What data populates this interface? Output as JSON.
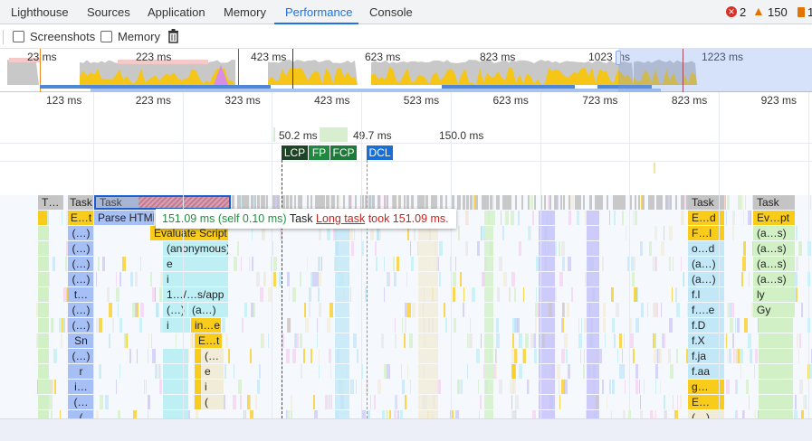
{
  "tabs": [
    {
      "label": "Lighthouse"
    },
    {
      "label": "Sources"
    },
    {
      "label": "Application"
    },
    {
      "label": "Memory"
    },
    {
      "label": "Performance",
      "active": true
    },
    {
      "label": "Console"
    }
  ],
  "status": {
    "errors": "2",
    "warnings": "150",
    "issues": "1",
    "error_color": "#d93025",
    "warning_color": "#e37400"
  },
  "toolbar": {
    "screenshots_label": "Screenshots",
    "screenshots_checked": false,
    "memory_label": "Memory",
    "memory_checked": false,
    "clear_icon": "trash-icon"
  },
  "overview": {
    "ticks": [
      "23 ms",
      "223 ms",
      "423 ms",
      "623 ms",
      "823 ms",
      "1023 ms",
      "1223 ms"
    ]
  },
  "ruler": {
    "ticks": [
      "123 ms",
      "223 ms",
      "323 ms",
      "423 ms",
      "523 ms",
      "623 ms",
      "723 ms",
      "823 ms",
      "923 ms"
    ]
  },
  "timings": {
    "t1": "50.2 ms",
    "t2": "49.7 ms",
    "t3": "150.0 ms"
  },
  "markers": [
    {
      "label": "LCP",
      "color": "#1e4426"
    },
    {
      "label": "FP",
      "color": "#1f8a3f"
    },
    {
      "label": "FCP",
      "color": "#1f7a3a"
    },
    {
      "label": "DCL",
      "color": "#1a6fd6"
    }
  ],
  "tooltip": {
    "duration": "151.09 ms (self 0.10 ms)",
    "name": "Task",
    "link": "Long task",
    "message": "took 151.09 ms."
  },
  "flame": {
    "colors": {
      "task": "#c4c4c4",
      "script": "#f9cc1c",
      "parse": "#a6bff4",
      "call": "#bdeff5",
      "call2": "#c2e7f7",
      "green": "#d2f0c6",
      "beige": "#f1ecd8"
    },
    "col_a": [
      "T…"
    ],
    "col_b": [
      "Task",
      "E…t",
      "(…)",
      "(…)",
      "(…)",
      "(…)",
      "t…",
      "(…)",
      "(…)",
      "Sn",
      "(…)",
      "r",
      "i…",
      "(…",
      "("
    ],
    "main": {
      "task": "Task",
      "parse": "Parse HTML",
      "evaluate": "Evaluate Script",
      "stack": [
        "(anonymous)",
        "e",
        "i",
        "1…/…s/app"
      ],
      "row8": [
        "(…)",
        "(a…)"
      ],
      "row9": [
        "i",
        "in…e"
      ],
      "deep": [
        "E…t",
        "(…",
        "e",
        "i",
        "("
      ]
    },
    "col_r1": [
      "Task",
      "E…d",
      "F…l",
      "o…d",
      "(a…)",
      "(a…)",
      "f.l",
      "f….e",
      "f.D",
      "f.X",
      "f.ja",
      "f.aa",
      "g…",
      "E…",
      "(…)"
    ],
    "col_r2": [
      "Task",
      "Ev…pt",
      "(a…s)",
      "(a…s)",
      "(a…s)",
      "(a…s)",
      "ly",
      "Gy"
    ]
  }
}
